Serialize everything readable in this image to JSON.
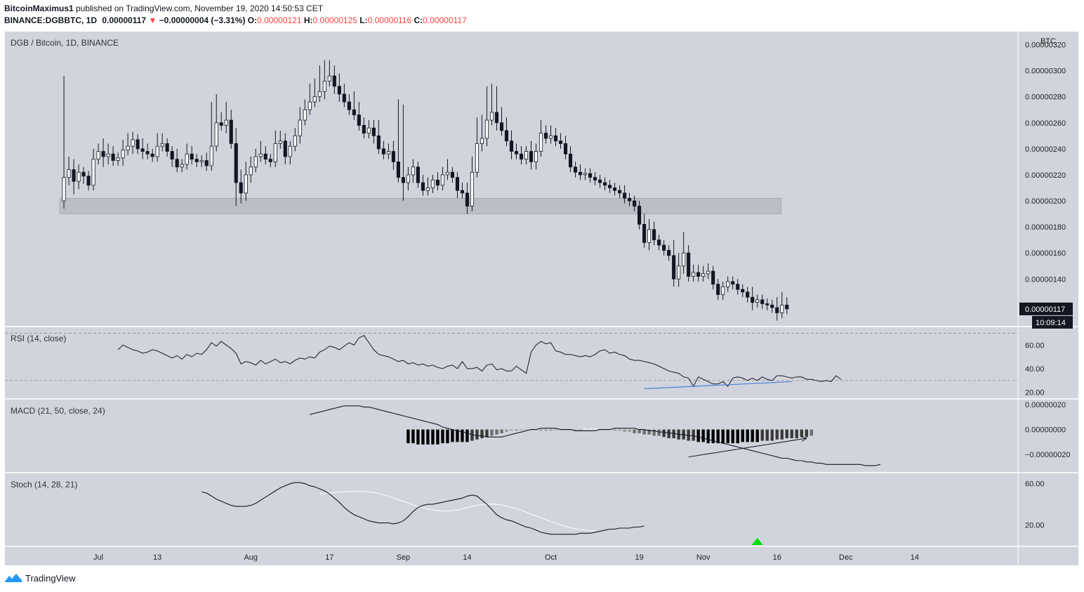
{
  "header": {
    "author": "BitcoinMaximus1",
    "published_text": "published on TradingView.com, November 19, 2020 14:50:53 CET",
    "symbol": "BINANCE:DGBBTC, 1D",
    "last": "0.00000117",
    "change": "−0.00000004 (−3.31%)",
    "o_label": "O:",
    "o_value": "0.00000121",
    "h_label": "H:",
    "h_value": "0.00000125",
    "l_label": "L:",
    "l_value": "0.00000116",
    "c_label": "C:",
    "c_value": "0.00000117"
  },
  "footer": {
    "brand": "TradingView"
  },
  "colors": {
    "pane_bg": "#d1d4dc",
    "up_body": "#ffffff",
    "down_body": "#131722",
    "zone": "#b8bbc4",
    "rsi_trend": "#4a7fd6",
    "stoch_signal": "#ffffff",
    "buy_marker": "#00dd00"
  },
  "chart_data": [
    {
      "type": "candlestick",
      "pane_title": "DGB / Bitcoin, 1D, BINANCE",
      "axis_unit": "BTC",
      "y_ticks": [
        "0.00000320",
        "0.00000300",
        "0.00000280",
        "0.00000260",
        "0.00000240",
        "0.00000220",
        "0.00000200",
        "0.00000180",
        "0.00000160",
        "0.00000140",
        "0.00000120"
      ],
      "y_tick_values": [
        320,
        300,
        280,
        260,
        240,
        220,
        200,
        180,
        160,
        140,
        120
      ],
      "y_scale_note": "values in satoshi (1e-8 BTC)",
      "ylim": [
        104,
        330
      ],
      "last_price_label": "0.00000117",
      "countdown_label": "10:09:14",
      "support_zone": [
        190,
        202
      ],
      "support_zone_days": [
        0,
        145
      ],
      "x_ticks": [
        {
          "label": "Jul",
          "day": 7
        },
        {
          "label": "13",
          "day": 19
        },
        {
          "label": "Aug",
          "day": 38
        },
        {
          "label": "17",
          "day": 54
        },
        {
          "label": "Sep",
          "day": 69
        },
        {
          "label": "14",
          "day": 82
        },
        {
          "label": "Oct",
          "day": 99
        },
        {
          "label": "19",
          "day": 117
        },
        {
          "label": "Nov",
          "day": 130
        },
        {
          "label": "16",
          "day": 145
        },
        {
          "label": "Dec",
          "day": 159
        },
        {
          "label": "14",
          "day": 173
        }
      ],
      "x_range_days": [
        -12,
        194
      ],
      "first_candle_day": 0,
      "closes": [
        218,
        224,
        215,
        222,
        219,
        212,
        232,
        238,
        234,
        236,
        231,
        233,
        239,
        242,
        247,
        240,
        238,
        236,
        234,
        242,
        244,
        238,
        232,
        226,
        228,
        236,
        232,
        230,
        231,
        227,
        242,
        260,
        258,
        262,
        244,
        214,
        206,
        220,
        226,
        234,
        236,
        232,
        230,
        244,
        246,
        234,
        242,
        250,
        262,
        270,
        276,
        280,
        284,
        292,
        296,
        288,
        282,
        276,
        270,
        266,
        258,
        252,
        256,
        250,
        240,
        236,
        238,
        230,
        218,
        214,
        220,
        226,
        214,
        208,
        210,
        216,
        212,
        220,
        222,
        218,
        208,
        206,
        196,
        222,
        244,
        248,
        262,
        268,
        260,
        254,
        246,
        238,
        236,
        232,
        238,
        230,
        238,
        252,
        248,
        250,
        246,
        244,
        236,
        226,
        222,
        220,
        221,
        218,
        216,
        214,
        212,
        210,
        208,
        206,
        202,
        200,
        196,
        182,
        168,
        178,
        170,
        166,
        162,
        158,
        140,
        150,
        160,
        142,
        145,
        142,
        144,
        146,
        136,
        128,
        134,
        138,
        136,
        132,
        130,
        126,
        122,
        124,
        121,
        120,
        118,
        114,
        120,
        117
      ],
      "open_prev_close": true,
      "wick_high_extra": [
        78,
        10,
        8,
        6,
        4,
        4,
        8,
        6,
        10,
        8,
        6,
        4,
        8,
        10,
        6,
        4,
        8,
        6,
        4,
        10,
        8,
        4,
        4,
        8,
        4,
        8,
        6,
        4,
        4,
        6,
        34,
        22,
        8,
        14,
        8,
        12,
        10,
        10,
        8,
        6,
        10,
        6,
        4,
        10,
        8,
        6,
        4,
        6,
        10,
        8,
        14,
        14,
        20,
        16,
        12,
        8,
        10,
        8,
        6,
        14,
        10,
        6,
        6,
        6,
        12,
        6,
        6,
        8,
        48,
        56,
        6,
        6,
        4,
        6,
        8,
        4,
        6,
        6,
        10,
        4,
        4,
        6,
        8,
        12,
        20,
        18,
        26,
        22,
        20,
        12,
        10,
        8,
        6,
        6,
        4,
        8,
        6,
        10,
        6,
        8,
        6,
        6,
        6,
        6,
        4,
        6,
        4,
        4,
        4,
        4,
        4,
        4,
        4,
        4,
        6,
        4,
        4,
        4,
        8,
        8,
        6,
        4,
        4,
        4,
        12,
        10,
        16,
        6,
        6,
        6,
        6,
        6,
        4,
        4,
        4,
        4,
        4,
        4,
        4,
        4,
        8,
        4,
        4,
        4,
        4,
        8,
        10,
        6
      ],
      "wick_low_extra": [
        6,
        6,
        10,
        6,
        6,
        4,
        4,
        4,
        8,
        6,
        4,
        4,
        6,
        4,
        6,
        4,
        6,
        4,
        4,
        4,
        4,
        4,
        6,
        4,
        4,
        4,
        4,
        4,
        4,
        4,
        4,
        4,
        4,
        6,
        4,
        18,
        8,
        6,
        6,
        4,
        4,
        4,
        4,
        4,
        4,
        6,
        6,
        4,
        6,
        4,
        4,
        4,
        4,
        6,
        4,
        6,
        6,
        4,
        4,
        4,
        4,
        4,
        4,
        6,
        4,
        4,
        4,
        6,
        4,
        14,
        6,
        6,
        4,
        4,
        4,
        4,
        4,
        4,
        4,
        4,
        6,
        4,
        6,
        4,
        4,
        6,
        6,
        4,
        6,
        4,
        4,
        6,
        4,
        4,
        4,
        6,
        6,
        4,
        4,
        4,
        4,
        4,
        4,
        4,
        4,
        4,
        4,
        4,
        4,
        4,
        4,
        4,
        4,
        4,
        4,
        4,
        4,
        4,
        4,
        6,
        4,
        4,
        4,
        4,
        6,
        6,
        6,
        4,
        4,
        4,
        4,
        4,
        4,
        4,
        4,
        4,
        4,
        4,
        4,
        4,
        6,
        4,
        4,
        4,
        4,
        6,
        4,
        4
      ]
    },
    {
      "type": "line",
      "pane_title": "RSI (14, close)",
      "y_ticks": [
        "60.00",
        "40.00",
        "20.00"
      ],
      "y_tick_values": [
        60,
        40,
        20
      ],
      "ylim": [
        15,
        75
      ],
      "bands": [
        70,
        30
      ],
      "first_day": 11,
      "values": [
        56,
        60,
        58,
        56,
        55,
        53,
        54,
        56,
        55,
        53,
        51,
        49,
        51,
        48,
        52,
        50,
        53,
        52,
        56,
        62,
        59,
        63,
        60,
        57,
        53,
        44,
        46,
        45,
        43,
        47,
        44,
        46,
        48,
        45,
        46,
        44,
        47,
        49,
        48,
        50,
        49,
        54,
        56,
        59,
        58,
        56,
        59,
        62,
        60,
        66,
        68,
        62,
        56,
        52,
        51,
        50,
        48,
        46,
        47,
        44,
        45,
        43,
        44,
        42,
        43,
        41,
        40,
        42,
        43,
        40,
        46,
        40,
        40,
        41,
        38,
        43,
        44,
        39,
        40,
        38,
        38,
        42,
        39,
        36,
        54,
        60,
        63,
        61,
        62,
        55,
        54,
        52,
        52,
        51,
        50,
        51,
        50,
        52,
        55,
        56,
        53,
        54,
        52,
        51,
        48,
        47,
        47,
        46,
        45,
        44,
        42,
        40,
        38,
        37,
        36,
        33,
        32,
        25,
        33,
        31,
        29,
        27,
        27,
        29,
        25,
        32,
        33,
        32,
        30,
        32,
        30,
        33,
        31,
        30,
        34,
        34,
        33,
        32,
        33,
        33,
        31,
        31,
        30,
        29,
        30,
        29,
        34,
        31
      ],
      "trendline": {
        "from": [
          118,
          23
        ],
        "to": [
          148,
          29
        ]
      }
    },
    {
      "type": "macd",
      "pane_title": "MACD (21, 50, close, 24)",
      "y_ticks": [
        "0.00000020",
        "0.00000000",
        "−0.00000020"
      ],
      "y_tick_values": [
        20,
        0,
        -20
      ],
      "ylim": [
        -34,
        24
      ],
      "macd_first_day": 50,
      "macd": [
        12,
        13,
        14,
        15,
        16,
        17,
        18,
        19,
        19,
        19,
        19,
        18,
        18,
        17,
        16,
        15,
        14,
        13,
        12,
        11,
        10,
        9,
        8,
        7,
        6,
        5,
        4,
        2,
        1,
        0,
        -1,
        -2,
        -3,
        -4,
        -5,
        -5,
        -6,
        -6,
        -6,
        -6,
        -5,
        -4,
        -3,
        -2,
        -1,
        0,
        0,
        1,
        1,
        1,
        1,
        0,
        0,
        0,
        -1,
        -1,
        -1,
        -1,
        -1,
        0,
        0,
        0,
        1,
        1,
        1,
        1,
        1,
        0,
        0,
        -1,
        -1,
        -2,
        -2,
        -3,
        -3,
        -4,
        -4,
        -5,
        -5,
        -6,
        -7,
        -8,
        -9,
        -10,
        -11,
        -12,
        -13,
        -14,
        -15,
        -16,
        -17,
        -18,
        -19,
        -20,
        -21,
        -22,
        -23,
        -23,
        -24,
        -25,
        -25,
        -26,
        -26,
        -27,
        -27,
        -28,
        -28,
        -28,
        -28,
        -28,
        -28,
        -28,
        -28,
        -29,
        -29,
        -29,
        -28
      ],
      "hist_first_day": 70,
      "hist": [
        -11,
        -11,
        -12,
        -12,
        -12,
        -12,
        -12,
        -11,
        -11,
        -10,
        -10,
        -10,
        -10,
        -9,
        -8,
        -7,
        -6,
        -5,
        -4,
        -3,
        -2,
        -1,
        -1,
        0,
        0,
        0,
        0,
        -1,
        -1,
        -1,
        0,
        0,
        0,
        0,
        0,
        0,
        1,
        1,
        1,
        0,
        0,
        0,
        -1,
        -1,
        -2,
        -2,
        -3,
        -3,
        -4,
        -4,
        -5,
        -5,
        -6,
        -7,
        -7,
        -8,
        -8,
        -9,
        -9,
        -10,
        -10,
        -11,
        -11,
        -11,
        -11,
        -11,
        -11,
        -11,
        -10,
        -10,
        -10,
        -10,
        -9,
        -9,
        -9,
        -8,
        -8,
        -7,
        -7,
        -7,
        -6,
        -6,
        -5
      ],
      "divergence_arrow": {
        "from": [
          127,
          -22
        ],
        "to": [
          151,
          -7
        ]
      }
    },
    {
      "type": "line",
      "pane_title": "Stoch (14, 28, 21)",
      "y_ticks": [
        "60.00",
        "20.00"
      ],
      "y_tick_values": [
        60,
        20
      ],
      "ylim": [
        0,
        70
      ],
      "k_first_day": 28,
      "k": [
        52,
        51,
        48,
        45,
        43,
        41,
        39,
        38,
        38,
        38,
        39,
        41,
        44,
        47,
        50,
        53,
        56,
        58,
        60,
        61,
        61,
        60,
        58,
        57,
        55,
        53,
        50,
        46,
        42,
        37,
        33,
        30,
        28,
        26,
        24,
        23,
        22,
        22,
        22,
        21,
        22,
        24,
        28,
        33,
        37,
        39,
        40,
        40,
        41,
        42,
        43,
        44,
        45,
        46,
        48,
        49,
        48,
        44,
        40,
        35,
        30,
        27,
        25,
        24,
        22,
        20,
        18,
        17,
        15,
        13,
        12,
        11,
        11,
        11,
        11,
        11,
        11,
        12,
        12,
        12,
        13,
        14,
        15,
        16,
        16,
        17,
        17,
        17,
        18,
        18,
        19
      ],
      "d_first_day": 52,
      "d": [
        50,
        50.5,
        51,
        51.5,
        52,
        52.2,
        52.4,
        52.5,
        52.5,
        52.4,
        52,
        51.5,
        50.5,
        49.2,
        47.8,
        46.2,
        44.5,
        42.8,
        41.2,
        39.5,
        38,
        36.8,
        35.5,
        34.6,
        34,
        33.6,
        33.6,
        33.9,
        34.5,
        35.5,
        36.8,
        38,
        39,
        39.7,
        40.1,
        40.2,
        40,
        39.4,
        38.4,
        37.2,
        35.8,
        34.2,
        32.5,
        30.6,
        28.8,
        27,
        25.1,
        23.3,
        21.6,
        20,
        18.6,
        17.3,
        16.3,
        15.6,
        15,
        14.6,
        14.4
      ],
      "buy_signal_day": 141
    }
  ]
}
